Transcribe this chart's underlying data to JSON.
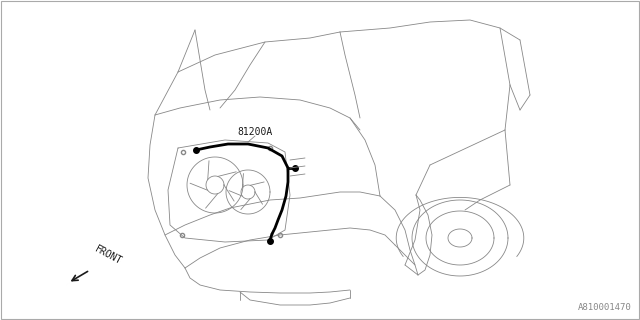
{
  "bg_color": "#ffffff",
  "line_color": "#1a1a1a",
  "thin_line_color": "#888888",
  "med_line_color": "#666666",
  "harness_color": "#000000",
  "label_81200A": "81200A",
  "label_front": "FRONT",
  "label_part_number": "A810001470",
  "fig_width": 6.4,
  "fig_height": 3.2,
  "dpi": 100,
  "lw_thin": 0.6,
  "lw_med": 0.9,
  "lw_thick": 2.0
}
